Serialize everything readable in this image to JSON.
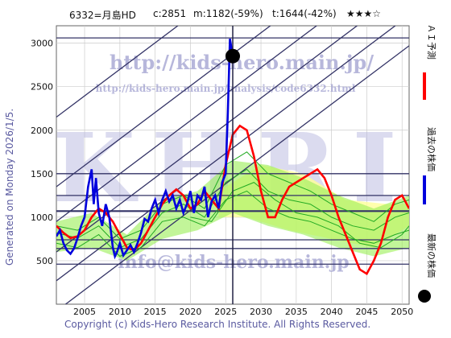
{
  "header": {
    "code_name": "6332=月島HD",
    "current": "c:2851",
    "m_value": "m:1182(-59%)",
    "t_value": "t:1644(-42%)",
    "stars": "★★★☆"
  },
  "side_note": "Generated on Monday 2026/1/5.",
  "copyright": "Copyright (c) Kids-Hero Research Institute. All Rights Reserved.",
  "watermarks": {
    "url": "http://kids-hero.main.jp/",
    "analysis_url": "http://kids-hero.main.jp/analysis/code6332.html",
    "big": "KHRI",
    "email": "info@kids-hero.main.jp"
  },
  "legend": {
    "ai_forecast": "ＡＩ予測",
    "past_price": "過去の株価",
    "latest_price": "最新の株価"
  },
  "colors": {
    "ai_forecast": "#ff0000",
    "past_price": "#0000dd",
    "latest_price": "#000000",
    "scenario_lines": "#22aa22",
    "band_fill": "#99ee55",
    "yellow_fill": "#ffff99",
    "channel_lines": "#333366",
    "grid": "#cccccc"
  },
  "chart_data": {
    "type": "line",
    "x_range": [
      2001,
      2051
    ],
    "y_range": [
      0,
      3200
    ],
    "x_ticks": [
      2005,
      2010,
      2015,
      2020,
      2025,
      2030,
      2035,
      2040,
      2045,
      2050
    ],
    "y_ticks": [
      500,
      1000,
      1500,
      2000,
      2500,
      3000
    ],
    "grid": true,
    "horizontal_levels": [
      3060,
      1500,
      1250,
      1070,
      740,
      640,
      460
    ],
    "latest_point": {
      "x": 2026.0,
      "y": 2851
    },
    "channel_lines": [
      {
        "x": [
          2001,
          2051
        ],
        "y": [
          2150,
          5200
        ]
      },
      {
        "x": [
          2001,
          2051
        ],
        "y": [
          1350,
          4400
        ]
      },
      {
        "x": [
          2001,
          2051
        ],
        "y": [
          950,
          4000
        ]
      },
      {
        "x": [
          2001,
          2051
        ],
        "y": [
          600,
          3650
        ]
      },
      {
        "x": [
          2001,
          2051
        ],
        "y": [
          270,
          3320
        ]
      },
      {
        "x": [
          2001,
          2051
        ],
        "y": [
          -80,
          2970
        ]
      }
    ],
    "series": [
      {
        "name": "過去の株価",
        "x": [
          2001,
          2001.5,
          2002,
          2002.5,
          2003,
          2003.5,
          2004,
          2004.5,
          2005,
          2005.5,
          2006,
          2006.3,
          2006.6,
          2007,
          2007.5,
          2008,
          2008.5,
          2009,
          2009.3,
          2009.6,
          2010,
          2010.5,
          2011,
          2011.5,
          2012,
          2012.5,
          2013,
          2013.5,
          2014,
          2014.5,
          2015,
          2015.5,
          2016,
          2016.5,
          2017,
          2017.5,
          2018,
          2018.5,
          2019,
          2019.5,
          2020,
          2020.5,
          2021,
          2021.5,
          2022,
          2022.5,
          2023,
          2023.5,
          2024,
          2024.5,
          2025,
          2025.3,
          2025.6,
          2026.0
        ],
        "y": [
          780,
          850,
          700,
          620,
          580,
          640,
          760,
          900,
          1000,
          1350,
          1550,
          1150,
          1450,
          1050,
          900,
          1150,
          1000,
          650,
          550,
          600,
          700,
          560,
          620,
          680,
          600,
          700,
          820,
          980,
          950,
          1100,
          1200,
          1050,
          1200,
          1300,
          1180,
          1250,
          1100,
          1200,
          1050,
          1150,
          1300,
          1050,
          1250,
          1200,
          1350,
          1000,
          1180,
          1250,
          1100,
          1400,
          1500,
          2200,
          3050,
          2851
        ]
      },
      {
        "name": "ＡＩ予測",
        "x": [
          2001,
          2002,
          2003,
          2004,
          2005,
          2006,
          2007,
          2008,
          2009,
          2010,
          2011,
          2012,
          2013,
          2014,
          2015,
          2016,
          2017,
          2018,
          2019,
          2020,
          2021,
          2022,
          2023,
          2024,
          2025,
          2026,
          2027,
          2028,
          2029,
          2030,
          2031,
          2032,
          2033,
          2034,
          2035,
          2036,
          2037,
          2038,
          2039,
          2040,
          2041,
          2042,
          2043,
          2044,
          2045,
          2046,
          2047,
          2048,
          2049,
          2050,
          2051
        ],
        "y": [
          900,
          820,
          760,
          780,
          850,
          1000,
          1100,
          1050,
          950,
          800,
          650,
          620,
          700,
          850,
          1000,
          1150,
          1250,
          1320,
          1250,
          1100,
          1150,
          1300,
          1200,
          1100,
          1600,
          1950,
          2050,
          2000,
          1700,
          1300,
          1000,
          1000,
          1200,
          1350,
          1400,
          1450,
          1500,
          1550,
          1450,
          1250,
          1000,
          800,
          600,
          400,
          350,
          500,
          700,
          1000,
          1200,
          1250,
          1100
        ]
      },
      {
        "name": "scenario-a",
        "x": [
          2001,
          2004,
          2007,
          2010,
          2013,
          2016,
          2019,
          2022,
          2025,
          2028,
          2031,
          2034,
          2037,
          2040,
          2043,
          2046,
          2049,
          2051
        ],
        "y": [
          820,
          760,
          900,
          650,
          750,
          1050,
          1150,
          1000,
          1400,
          1550,
          1300,
          1200,
          1150,
          1000,
          900,
          850,
          1000,
          1050
        ]
      },
      {
        "name": "scenario-b",
        "x": [
          2001,
          2004,
          2007,
          2010,
          2013,
          2016,
          2019,
          2022,
          2025,
          2028,
          2031,
          2034,
          2037,
          2040,
          2043,
          2046,
          2049,
          2051
        ],
        "y": [
          700,
          650,
          800,
          550,
          650,
          950,
          1000,
          900,
          1200,
          1300,
          1100,
          1000,
          950,
          850,
          750,
          700,
          800,
          850
        ]
      },
      {
        "name": "scenario-c",
        "x": [
          2001,
          2004,
          2007,
          2010,
          2013,
          2016,
          2019,
          2022,
          2025,
          2028,
          2031,
          2034,
          2037,
          2040,
          2043,
          2046,
          2049,
          2051
        ],
        "y": [
          900,
          850,
          1000,
          750,
          850,
          1150,
          1250,
          1100,
          1600,
          1750,
          1500,
          1400,
          1300,
          1150,
          1050,
          950,
          1150,
          1200
        ]
      },
      {
        "name": "scenario-d",
        "x": [
          2020,
          2023,
          2026,
          2029,
          2032,
          2035,
          2038,
          2041,
          2044,
          2047,
          2050,
          2051
        ],
        "y": [
          1000,
          950,
          1300,
          1400,
          1200,
          1050,
          1000,
          900,
          700,
          650,
          800,
          900
        ]
      }
    ]
  }
}
